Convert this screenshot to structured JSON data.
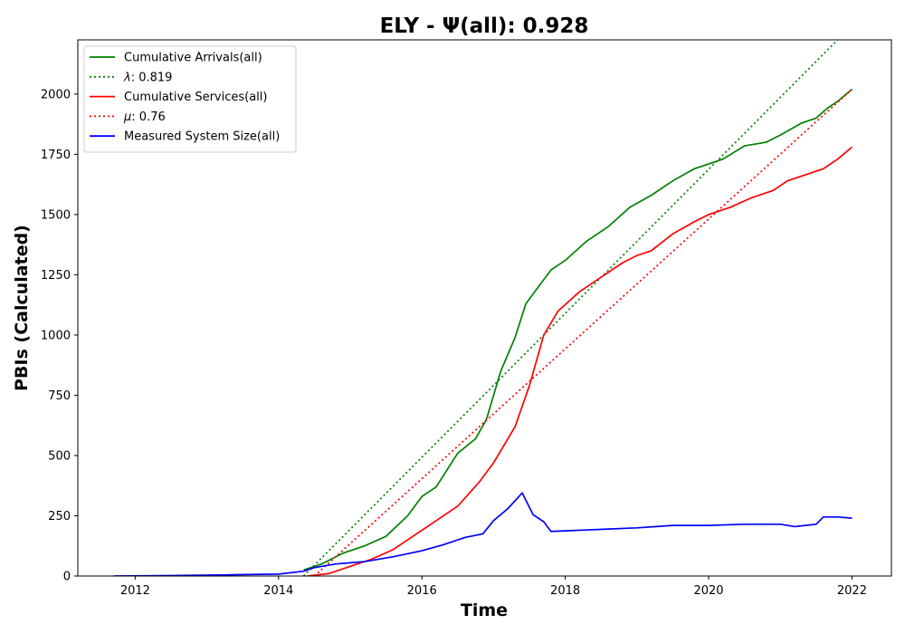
{
  "chart_data": {
    "type": "line",
    "title": "ELY -  Ψ(all): 0.928",
    "xlabel": "Time",
    "ylabel": "PBIs (Calculated)",
    "xlim": [
      2011.2,
      2022.55
    ],
    "ylim": [
      0,
      2225
    ],
    "x_ticks": [
      "2012",
      "2014",
      "2016",
      "2018",
      "2020",
      "2022"
    ],
    "x_tick_values": [
      2012,
      2014,
      2016,
      2018,
      2020,
      2022
    ],
    "y_ticks": [
      "0",
      "250",
      "500",
      "750",
      "1000",
      "1250",
      "1500",
      "1750",
      "2000"
    ],
    "y_tick_values": [
      0,
      250,
      500,
      750,
      1000,
      1250,
      1500,
      1750,
      2000
    ],
    "grid": false,
    "legend_position": "top-left",
    "series": [
      {
        "name": "Cumulative Arrivals(all)",
        "color": "#008000",
        "style": "solid",
        "x": [
          2014.35,
          2014.6,
          2014.9,
          2015.2,
          2015.5,
          2015.8,
          2016.0,
          2016.2,
          2016.5,
          2016.75,
          2016.9,
          2017.1,
          2017.3,
          2017.45,
          2017.6,
          2017.8,
          2018.0,
          2018.3,
          2018.6,
          2018.9,
          2019.2,
          2019.5,
          2019.8,
          2020.0,
          2020.2,
          2020.5,
          2020.8,
          2021.0,
          2021.3,
          2021.5,
          2021.65,
          2021.8,
          2022.0
        ],
        "y": [
          25,
          50,
          95,
          125,
          165,
          250,
          330,
          370,
          510,
          570,
          650,
          850,
          990,
          1130,
          1190,
          1270,
          1310,
          1390,
          1450,
          1530,
          1580,
          1640,
          1690,
          1710,
          1730,
          1785,
          1800,
          1830,
          1880,
          1900,
          1940,
          1970,
          2020
        ]
      },
      {
        "name": "λ: 0.819",
        "color": "#008000",
        "style": "dotted",
        "x": [
          2014.35,
          2021.85
        ],
        "y": [
          0,
          2240
        ]
      },
      {
        "name": "Cumulative Services(all)",
        "color": "#ff0000",
        "style": "solid",
        "x": [
          2014.4,
          2014.7,
          2015.0,
          2015.3,
          2015.6,
          2015.9,
          2016.2,
          2016.5,
          2016.8,
          2017.0,
          2017.3,
          2017.5,
          2017.7,
          2017.9,
          2018.2,
          2018.5,
          2018.8,
          2019.0,
          2019.2,
          2019.5,
          2019.8,
          2020.0,
          2020.3,
          2020.6,
          2020.9,
          2021.1,
          2021.3,
          2021.6,
          2021.8,
          2022.0
        ],
        "y": [
          0,
          10,
          40,
          70,
          110,
          170,
          230,
          290,
          390,
          470,
          620,
          790,
          1000,
          1100,
          1180,
          1240,
          1300,
          1330,
          1350,
          1420,
          1470,
          1500,
          1530,
          1570,
          1600,
          1640,
          1660,
          1690,
          1730,
          1780
        ]
      },
      {
        "name": "μ: 0.76",
        "color": "#ff0000",
        "style": "dotted",
        "x": [
          2014.5,
          2022.0
        ],
        "y": [
          0,
          2020
        ]
      },
      {
        "name": "Measured System Size(all)",
        "color": "#0000ff",
        "style": "solid",
        "x": [
          2011.7,
          2012.5,
          2013.3,
          2014.0,
          2014.35,
          2014.5,
          2014.8,
          2015.2,
          2015.6,
          2016.0,
          2016.3,
          2016.6,
          2016.85,
          2017.0,
          2017.2,
          2017.4,
          2017.55,
          2017.7,
          2017.8,
          2018.2,
          2018.6,
          2019.0,
          2019.5,
          2020.0,
          2020.5,
          2021.0,
          2021.2,
          2021.5,
          2021.6,
          2021.8,
          2022.0
        ],
        "y": [
          0,
          2,
          5,
          8,
          20,
          35,
          50,
          60,
          80,
          105,
          130,
          160,
          175,
          230,
          280,
          345,
          255,
          225,
          185,
          190,
          195,
          200,
          210,
          210,
          215,
          215,
          205,
          215,
          245,
          245,
          240
        ]
      }
    ],
    "legend": [
      {
        "label_prefix": "",
        "label_italic": "",
        "label_suffix": "Cumulative Arrivals(all)",
        "color": "#008000",
        "style": "solid"
      },
      {
        "label_prefix": "",
        "label_italic": "λ",
        "label_suffix": ": 0.819",
        "color": "#008000",
        "style": "dotted"
      },
      {
        "label_prefix": "",
        "label_italic": "",
        "label_suffix": "Cumulative Services(all)",
        "color": "#ff0000",
        "style": "solid"
      },
      {
        "label_prefix": "",
        "label_italic": "μ",
        "label_suffix": ": 0.76",
        "color": "#ff0000",
        "style": "dotted"
      },
      {
        "label_prefix": "",
        "label_italic": "",
        "label_suffix": "Measured System Size(all)",
        "color": "#0000ff",
        "style": "solid"
      }
    ]
  }
}
